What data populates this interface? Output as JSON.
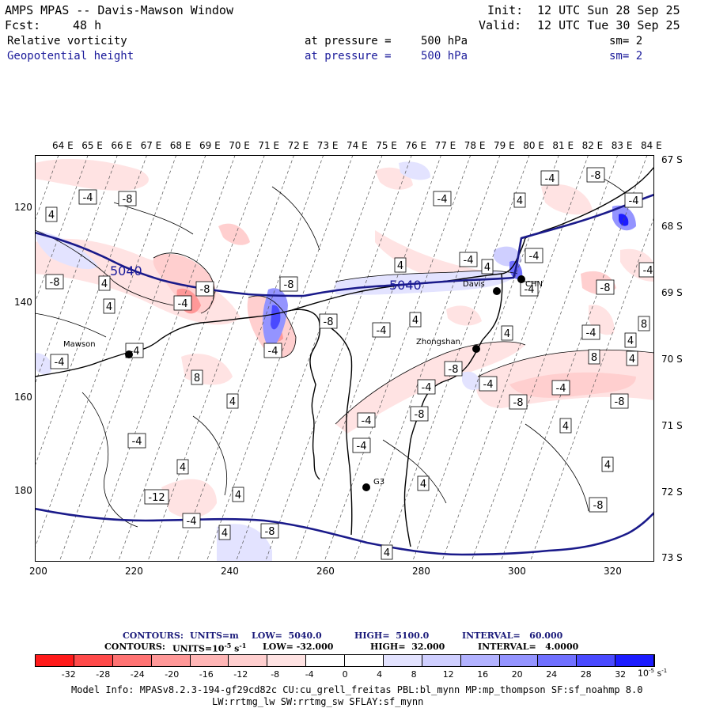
{
  "header": {
    "title": "AMPS MPAS -- Davis-Mawson Window",
    "init_label": "Init:",
    "init_value": "12 UTC Sun 28 Sep 25",
    "fcst_label": "Fcst:",
    "fcst_value": "48 h",
    "valid_label": "Valid:",
    "valid_value": "12 UTC Tue 30 Sep 25",
    "field1": {
      "name": "Relative vorticity",
      "pressure_text": "at pressure =",
      "level": "500 hPa",
      "smooth": "sm= 2"
    },
    "field2": {
      "name": "Geopotential height",
      "pressure_text": "at pressure =",
      "level": "500 hPa",
      "smooth": "sm= 2"
    }
  },
  "map": {
    "top_longitudes": [
      "64 E",
      "65 E",
      "66 E",
      "67 E",
      "68 E",
      "69 E",
      "70 E",
      "71 E",
      "72 E",
      "73 E",
      "74 E",
      "75 E",
      "76 E",
      "77 E",
      "78 E",
      "79 E",
      "80 E",
      "81 E",
      "82 E",
      "83 E",
      "84 E"
    ],
    "right_latitudes": [
      "67 S",
      "68 S",
      "69 S",
      "70 S",
      "71 S",
      "72 S",
      "73 S"
    ],
    "x_ticks": [
      "200",
      "220",
      "240",
      "260",
      "280",
      "300",
      "320"
    ],
    "y_ticks": [
      "120",
      "140",
      "160",
      "180"
    ],
    "stations": [
      {
        "name": "Mawson"
      },
      {
        "name": "Davis"
      },
      {
        "name": "Zhongshan"
      },
      {
        "name": "CHN"
      },
      {
        "name": "G3"
      }
    ],
    "height_contour_labels": [
      "5040",
      "5040"
    ],
    "vorticity_labels": [
      "-4",
      "-8",
      "4",
      "-4",
      "4",
      "-8",
      "-4",
      "-8",
      "4",
      "-4",
      "-8",
      "4",
      "-4",
      "4",
      "-4",
      "-8",
      "-4",
      "4",
      "-8",
      "-4",
      "4",
      "-4",
      "8",
      "-4",
      "8",
      "-4",
      "8",
      "-4",
      "-8",
      "4",
      "-8",
      "-4",
      "-4",
      "-8",
      "-4",
      "-4",
      "4",
      "-12",
      "4",
      "-8",
      "-4",
      "4",
      "-8",
      "4",
      "-4",
      "4",
      "-8",
      "4",
      "4",
      "-4",
      "4",
      "-4",
      "-8",
      "4",
      "4",
      "-4"
    ]
  },
  "colorbar": {
    "contours_line1": {
      "label": "CONTOURS:",
      "units": "UNITS=m",
      "low": "LOW=  5040.0",
      "high": "HIGH=  5100.0",
      "interval": "INTERVAL=   60.000"
    },
    "contours_line2": {
      "label": "CONTOURS:",
      "units": "UNITS=10",
      "units_exp": "-5",
      "units_tail": " s",
      "units_tail_exp": "-1",
      "low": "LOW= -32.000",
      "high": "HIGH=  32.000",
      "interval": "INTERVAL=   4.0000"
    },
    "tick_labels": [
      "-32",
      "-28",
      "-24",
      "-20",
      "-16",
      "-12",
      "-8",
      "-4",
      "0",
      "4",
      "8",
      "12",
      "16",
      "20",
      "24",
      "28",
      "32"
    ],
    "unit_label": "10",
    "unit_exp": "-5",
    "unit_tail": " s",
    "unit_tail_exp": "-1",
    "colors": [
      "#ff1a1a",
      "#ff4a4a",
      "#ff7373",
      "#ff9898",
      "#ffb6b6",
      "#ffcfcf",
      "#ffe3e3",
      "#ffffff",
      "#ffffff",
      "#e3e3ff",
      "#cfcfff",
      "#b2b2ff",
      "#9494ff",
      "#7070ff",
      "#4a4aff",
      "#1c1cff"
    ]
  },
  "footer": {
    "line1": "Model Info: MPASv8.2.3-194-gf29cd82c CU:cu_grell_freitas PBL:bl_mynn MP:mp_thompson SF:sf_noahmp 8.0",
    "line2": "LW:rrtmg_lw SW:rrtmg_sw SFLAY:sf_mynn"
  }
}
